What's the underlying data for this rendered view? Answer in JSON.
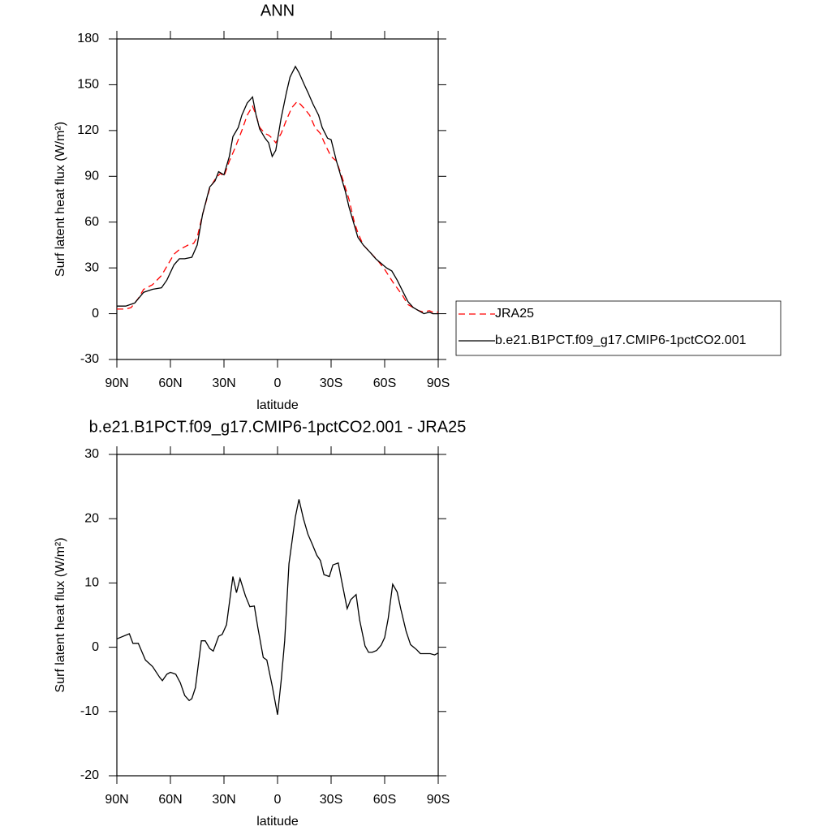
{
  "chart_data": [
    {
      "type": "line",
      "title": "ANN",
      "x_label": "latitude",
      "y_label": "Surf latent heat flux (W/m²)",
      "xlim": [
        90,
        -90
      ],
      "ylim": [
        -30,
        180
      ],
      "xticks": [
        {
          "value": 90,
          "label": "90N"
        },
        {
          "value": 60,
          "label": "60N"
        },
        {
          "value": 30,
          "label": "30N"
        },
        0,
        {
          "value": -30,
          "label": "30S"
        },
        {
          "value": -60,
          "label": "60S"
        },
        {
          "value": -90,
          "label": "90S"
        }
      ],
      "yticks": [
        -30,
        0,
        30,
        60,
        90,
        120,
        150,
        180
      ],
      "legend": "right",
      "series": [
        {
          "name": "JRA25",
          "color": "#ff0000",
          "dash": true,
          "x": [
            90,
            85,
            82,
            78,
            75,
            70,
            65,
            62,
            58,
            55,
            50,
            47,
            45,
            42,
            38,
            35,
            32,
            30,
            27,
            24,
            20,
            17,
            14,
            12,
            10,
            7,
            5,
            3,
            1,
            -2,
            -5,
            -8,
            -11,
            -13,
            -16,
            -18,
            -21,
            -24,
            -27,
            -30,
            -33,
            -36,
            -40,
            -43,
            -45,
            -48,
            -52,
            -56,
            -60,
            -65,
            -70,
            -73,
            -76,
            -79,
            -82,
            -85,
            -87,
            -90
          ],
          "values": [
            3,
            3,
            4,
            10,
            16,
            19,
            25,
            31,
            39,
            42,
            45,
            46,
            50,
            65,
            82,
            88,
            92,
            90,
            100,
            108,
            120,
            130,
            136,
            130,
            122,
            118,
            117,
            115,
            112,
            118,
            127,
            135,
            139,
            137,
            133,
            130,
            122,
            118,
            110,
            103,
            100,
            90,
            75,
            60,
            53,
            45,
            40,
            35,
            29,
            20,
            12,
            6,
            4,
            2,
            1,
            2,
            1,
            1
          ]
        },
        {
          "name": "b.e21.B1PCT.f09_g17.CMIP6-1pctCO2.001",
          "color": "#000000",
          "dash": false,
          "x": [
            90,
            85,
            80,
            75,
            70,
            65,
            62,
            58,
            55,
            52,
            48,
            45,
            42,
            38,
            35,
            33,
            30,
            27,
            25,
            22,
            20,
            17,
            14,
            12,
            10,
            7,
            5,
            3,
            1,
            -2,
            -5,
            -7,
            -10,
            -12,
            -15,
            -17,
            -20,
            -23,
            -25,
            -28,
            -30,
            -33,
            -35,
            -38,
            -40,
            -43,
            -45,
            -48,
            -52,
            -55,
            -58,
            -61,
            -64,
            -67,
            -70,
            -73,
            -76,
            -79,
            -82,
            -85,
            -87,
            -90
          ],
          "values": [
            5,
            5,
            7,
            14,
            16,
            17,
            22,
            32,
            36,
            36,
            37,
            45,
            65,
            83,
            87,
            93,
            91,
            103,
            116,
            122,
            130,
            138,
            142,
            130,
            121,
            115,
            112,
            103,
            107,
            128,
            145,
            155,
            162,
            158,
            150,
            145,
            137,
            130,
            122,
            115,
            114,
            100,
            92,
            80,
            70,
            58,
            50,
            45,
            40,
            36,
            33,
            30,
            28,
            22,
            15,
            8,
            4,
            2,
            0,
            1,
            0,
            0
          ]
        }
      ]
    },
    {
      "type": "line",
      "title": "b.e21.B1PCT.f09_g17.CMIP6-1pctCO2.001 - JRA25",
      "x_label": "latitude",
      "y_label": "Surf latent heat flux (W/m²)",
      "xlim": [
        90,
        -90
      ],
      "ylim": [
        -20,
        30
      ],
      "xticks": [
        {
          "value": 90,
          "label": "90N"
        },
        {
          "value": 60,
          "label": "60N"
        },
        {
          "value": 30,
          "label": "30N"
        },
        0,
        {
          "value": -30,
          "label": "30S"
        },
        {
          "value": -60,
          "label": "60S"
        },
        {
          "value": -90,
          "label": "90S"
        }
      ],
      "yticks": [
        -20,
        -10,
        0,
        10,
        20,
        30
      ],
      "series": [
        {
          "color": "#000000",
          "dash": false,
          "x": [
            90,
            83,
            81,
            78,
            74,
            70,
            66,
            64.5,
            62,
            60,
            57,
            54.5,
            52,
            49.5,
            48,
            46,
            42.7,
            40.5,
            38,
            36,
            33,
            31,
            28.6,
            25,
            23,
            21,
            18,
            15.5,
            13,
            11,
            8,
            6,
            3,
            0,
            -2,
            -4,
            -6.4,
            -10,
            -12,
            -14.5,
            -17,
            -19.5,
            -22,
            -24,
            -26,
            -29,
            -31,
            -34,
            -36,
            -39,
            -41,
            -44,
            -46,
            -49,
            -51,
            -53,
            -55.5,
            -58,
            -60,
            -62,
            -64.5,
            -67,
            -69,
            -72,
            -74.5,
            -78,
            -80,
            -83,
            -85.5,
            -88,
            -90
          ],
          "values": [
            1.3,
            2.1,
            0.6,
            0.6,
            -2,
            -3,
            -4.7,
            -5.2,
            -4.2,
            -3.9,
            -4.2,
            -5.5,
            -7.5,
            -8.3,
            -8,
            -6.3,
            1,
            1,
            -0.2,
            -0.6,
            1.7,
            2,
            3.5,
            11,
            8.5,
            10.7,
            8,
            6.3,
            6.4,
            3,
            -1.6,
            -2,
            -6,
            -10.5,
            -5.3,
            1,
            13,
            20.3,
            23,
            20,
            17.6,
            16,
            14.3,
            13.5,
            11.3,
            11,
            12.8,
            13.1,
            10.2,
            6,
            7.4,
            8.2,
            4.2,
            0.2,
            -0.8,
            -0.8,
            -0.5,
            0.3,
            1.5,
            4.5,
            9.8,
            8.6,
            6,
            2.5,
            0.4,
            -0.4,
            -1,
            -1,
            -1,
            -1.2,
            -0.9
          ]
        }
      ]
    }
  ]
}
